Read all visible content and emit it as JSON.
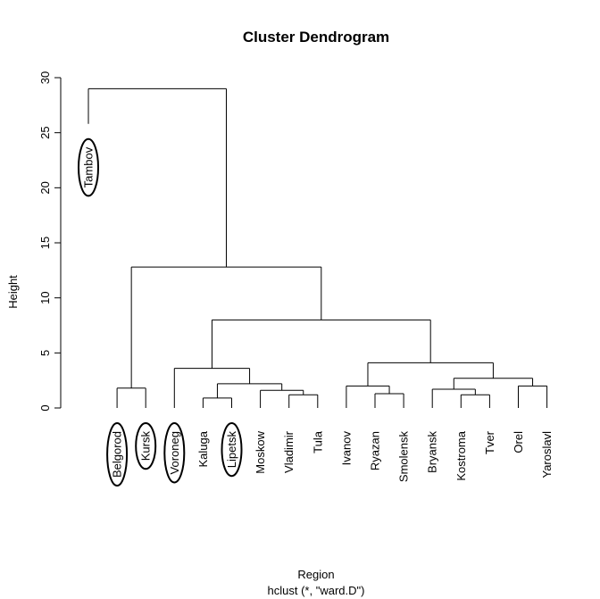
{
  "chart_data": {
    "type": "dendrogram",
    "title": "Cluster Dendrogram",
    "xlabel": "Region",
    "sublabel": "hclust (*, \"ward.D\")",
    "ylabel": "Height",
    "ylim": [
      0,
      30
    ],
    "yticks": [
      "0",
      "5",
      "10",
      "15",
      "20",
      "25",
      "30"
    ],
    "leaves": [
      "Tambov",
      "Belgorod",
      "Kursk",
      "Voroneg",
      "Kaluga",
      "Lipetsk",
      "Moskow",
      "Vladimir",
      "Tula",
      "Ivanov",
      "Ryazan",
      "Smolensk",
      "Bryansk",
      "Kostroma",
      "Tver",
      "Orel",
      "Yaroslavl"
    ],
    "circled": [
      "Tambov",
      "Belgorod",
      "Kursk",
      "Voroneg",
      "Lipetsk"
    ],
    "merges": [
      {
        "left": "Belgorod",
        "right": "Kursk",
        "height": 1.8
      },
      {
        "left": "Kaluga",
        "right": "Lipetsk",
        "height": 0.9
      },
      {
        "left": "Vladimir",
        "right": "Tula",
        "height": 1.2
      },
      {
        "left": "Moskow",
        "right": [
          "Vladimir",
          "Tula"
        ],
        "height": 1.6
      },
      {
        "left": [
          "Kaluga",
          "Lipetsk"
        ],
        "right": [
          "Moskow",
          "Vladimir",
          "Tula"
        ],
        "height": 2.2
      },
      {
        "left": "Voroneg",
        "right": [
          "Kaluga",
          "Lipetsk",
          "Moskow",
          "Vladimir",
          "Tula"
        ],
        "height": 3.6
      },
      {
        "left": "Ryazan",
        "right": "Smolensk",
        "height": 1.3
      },
      {
        "left": "Ivanov",
        "right": [
          "Ryazan",
          "Smolensk"
        ],
        "height": 2.0
      },
      {
        "left": "Kostroma",
        "right": "Tver",
        "height": 1.2
      },
      {
        "left": "Bryansk",
        "right": [
          "Kostroma",
          "Tver"
        ],
        "height": 1.7
      },
      {
        "left": "Orel",
        "right": "Yaroslavl",
        "height": 2.0
      },
      {
        "left": [
          "Bryansk",
          "Kostroma",
          "Tver"
        ],
        "right": [
          "Orel",
          "Yaroslavl"
        ],
        "height": 2.7
      },
      {
        "left": [
          "Ivanov",
          "Ryazan",
          "Smolensk"
        ],
        "right": [
          "Bryansk",
          "Kostroma",
          "Tver",
          "Orel",
          "Yaroslavl"
        ],
        "height": 4.1
      },
      {
        "left": [
          "Voroneg",
          "Kaluga",
          "Lipetsk",
          "Moskow",
          "Vladimir",
          "Tula"
        ],
        "right": [
          "Ivanov",
          "Ryazan",
          "Smolensk",
          "Bryansk",
          "Kostroma",
          "Tver",
          "Orel",
          "Yaroslavl"
        ],
        "height": 8.0
      },
      {
        "left": [
          "Belgorod",
          "Kursk"
        ],
        "right": [
          "Voroneg",
          "Kaluga",
          "Lipetsk",
          "Moskow",
          "Vladimir",
          "Tula",
          "Ivanov",
          "Ryazan",
          "Smolensk",
          "Bryansk",
          "Kostroma",
          "Tver",
          "Orel",
          "Yaroslavl"
        ],
        "height": 12.8
      },
      {
        "left": "Tambov",
        "right": [
          "Belgorod",
          "Kursk",
          "Voroneg",
          "Kaluga",
          "Lipetsk",
          "Moskow",
          "Vladimir",
          "Tula",
          "Ivanov",
          "Ryazan",
          "Smolensk",
          "Bryansk",
          "Kostroma",
          "Tver",
          "Orel",
          "Yaroslavl"
        ],
        "height": 29.0
      }
    ],
    "leaf_heights": {
      "Tambov": 25.8,
      "Belgorod": 0,
      "Kursk": 0,
      "Voroneg": 0,
      "Kaluga": 0,
      "Lipetsk": 0,
      "Moskow": 0,
      "Vladimir": 0,
      "Tula": 0,
      "Ivanov": 0,
      "Ryazan": 0,
      "Smolensk": 0,
      "Bryansk": 0,
      "Kostroma": 0,
      "Tver": 0,
      "Orel": 0,
      "Yaroslavl": 0
    },
    "grid": false
  }
}
